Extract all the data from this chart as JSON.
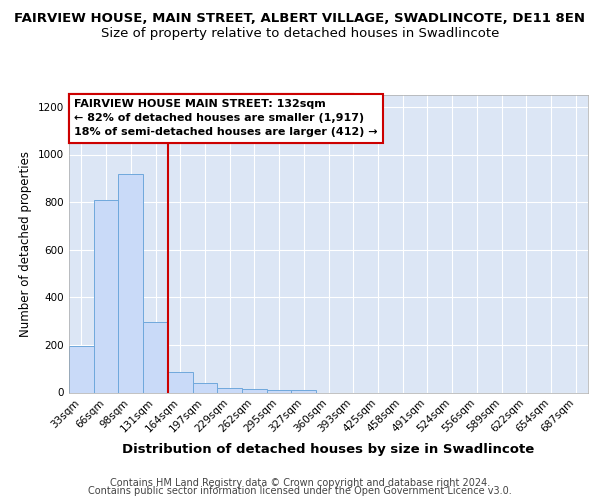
{
  "title": "FAIRVIEW HOUSE, MAIN STREET, ALBERT VILLAGE, SWADLINCOTE, DE11 8EN",
  "subtitle": "Size of property relative to detached houses in Swadlincote",
  "xlabel": "Distribution of detached houses by size in Swadlincote",
  "ylabel": "Number of detached properties",
  "bar_labels": [
    "33sqm",
    "66sqm",
    "98sqm",
    "131sqm",
    "164sqm",
    "197sqm",
    "229sqm",
    "262sqm",
    "295sqm",
    "327sqm",
    "360sqm",
    "393sqm",
    "425sqm",
    "458sqm",
    "491sqm",
    "524sqm",
    "556sqm",
    "589sqm",
    "622sqm",
    "654sqm",
    "687sqm"
  ],
  "bar_values": [
    197,
    810,
    920,
    295,
    88,
    38,
    20,
    15,
    10,
    10,
    0,
    0,
    0,
    0,
    0,
    0,
    0,
    0,
    0,
    0,
    0
  ],
  "bar_color": "#c9daf8",
  "bar_edge_color": "#6fa8dc",
  "red_line_bar_index": 3,
  "red_line_color": "#cc0000",
  "annotation_line1": "FAIRVIEW HOUSE MAIN STREET: 132sqm",
  "annotation_line2": "← 82% of detached houses are smaller (1,917)",
  "annotation_line3": "18% of semi-detached houses are larger (412) →",
  "annotation_box_color": "#ffffff",
  "annotation_edge_color": "#cc0000",
  "ylim": [
    0,
    1250
  ],
  "yticks": [
    0,
    200,
    400,
    600,
    800,
    1000,
    1200
  ],
  "background_color": "#dce6f5",
  "grid_color": "#ffffff",
  "footer_line1": "Contains HM Land Registry data © Crown copyright and database right 2024.",
  "footer_line2": "Contains public sector information licensed under the Open Government Licence v3.0.",
  "title_fontsize": 9.5,
  "subtitle_fontsize": 9.5,
  "xlabel_fontsize": 9.5,
  "ylabel_fontsize": 8.5,
  "tick_fontsize": 7.5,
  "annotation_fontsize": 8,
  "footer_fontsize": 7
}
